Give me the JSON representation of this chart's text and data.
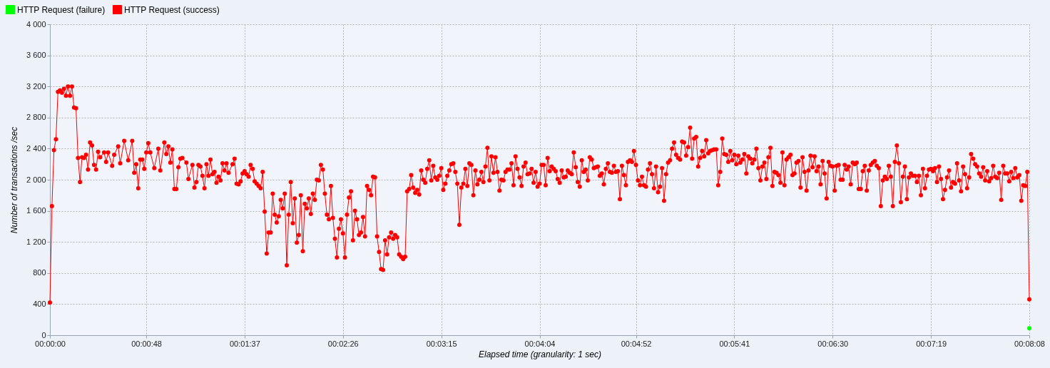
{
  "chart_data": {
    "type": "line",
    "xlabel": "Elapsed time (granularity: 1 sec)",
    "ylabel": "Number of transactions /sec",
    "xlim": [
      0,
      488
    ],
    "xticks": [
      {
        "value": 0,
        "label": "00:00:00"
      },
      {
        "value": 48,
        "label": "00:00:48"
      },
      {
        "value": 97,
        "label": "00:01:37"
      },
      {
        "value": 146,
        "label": "00:02:26"
      },
      {
        "value": 195,
        "label": "00:03:15"
      },
      {
        "value": 244,
        "label": "00:04:04"
      },
      {
        "value": 292,
        "label": "00:04:52"
      },
      {
        "value": 341,
        "label": "00:05:41"
      },
      {
        "value": 390,
        "label": "00:06:30"
      },
      {
        "value": 439,
        "label": "00:07:19"
      },
      {
        "value": 488,
        "label": "00:08:08"
      }
    ],
    "ylim": [
      0,
      4000
    ],
    "yticks": [
      0,
      400,
      800,
      {
        "value": 1200,
        "label": "1 200"
      },
      {
        "value": 1600,
        "label": "1 600"
      },
      {
        "value": 2000,
        "label": "2 000"
      },
      {
        "value": 2400,
        "label": "2 400"
      },
      {
        "value": 2800,
        "label": "2 800"
      },
      {
        "value": 3200,
        "label": "3 200"
      },
      {
        "value": 3600,
        "label": "3 600"
      },
      {
        "value": 4000,
        "label": "4 000"
      }
    ],
    "grid": true,
    "legend": "top left",
    "marker": "circle",
    "line_style": "solid",
    "series": [
      {
        "name": "HTTP Request (failure)",
        "color": "#00ff00",
        "x": [
          488
        ],
        "values": [
          90
        ]
      },
      {
        "name": "HTTP Request (success)",
        "color": "#ff0000",
        "x": [
          0,
          1,
          2,
          3,
          4,
          5,
          6,
          7,
          8,
          9,
          10,
          11,
          12,
          13,
          14,
          15,
          16,
          17,
          18,
          19,
          20,
          21,
          22,
          23,
          24,
          25,
          27,
          28,
          29,
          31,
          32,
          34,
          35,
          37,
          39,
          41,
          42,
          43,
          44,
          45,
          46,
          47,
          48,
          49,
          50,
          52,
          54,
          55,
          57,
          58,
          59,
          60,
          61,
          62,
          63,
          64,
          65,
          66,
          68,
          69,
          71,
          72,
          73,
          74,
          75,
          76,
          77,
          78,
          79,
          80,
          81,
          82,
          83,
          84,
          85,
          86,
          87,
          88,
          89,
          91,
          92,
          93,
          94,
          95,
          96,
          97,
          98,
          99,
          100,
          101,
          102,
          103,
          104,
          105,
          106,
          107,
          108,
          109,
          110,
          111,
          112,
          113,
          114,
          115,
          116,
          117,
          118,
          119,
          120,
          121,
          122,
          123,
          124,
          125,
          126,
          127,
          128,
          129,
          130,
          131,
          132,
          133,
          134,
          135,
          136,
          137,
          138,
          139,
          140,
          141,
          142,
          143,
          144,
          145,
          146,
          147,
          148,
          149,
          150,
          151,
          152,
          153,
          154,
          155,
          156,
          157,
          158,
          159,
          160,
          161,
          162,
          163,
          164,
          165,
          166,
          167,
          168,
          169,
          170,
          171,
          172,
          173,
          174,
          175,
          176,
          177,
          178,
          179,
          180,
          181,
          182,
          183,
          184,
          185,
          186,
          187,
          188,
          189,
          190,
          191,
          192,
          193,
          194,
          195,
          196,
          197,
          198,
          199,
          200,
          201,
          202,
          203,
          204,
          205,
          206,
          207,
          208,
          209,
          210,
          211,
          212,
          213,
          214,
          215,
          216,
          217,
          218,
          219,
          220,
          221,
          222,
          223,
          224,
          225,
          226,
          227,
          228,
          229,
          230,
          231,
          232,
          233,
          234,
          235,
          236,
          237,
          238,
          239,
          240,
          241,
          242,
          243,
          244,
          245,
          246,
          247,
          248,
          249,
          250,
          251,
          252,
          253,
          254,
          255,
          256,
          257,
          258,
          259,
          260,
          261,
          262,
          263,
          264,
          265,
          266,
          267,
          268,
          269,
          270,
          271,
          272,
          273,
          274,
          275,
          276,
          277,
          278,
          279,
          280,
          281,
          282,
          283,
          284,
          285,
          286,
          287,
          288,
          289,
          290,
          291,
          292,
          293,
          294,
          295,
          296,
          297,
          298,
          299,
          300,
          301,
          302,
          303,
          304,
          305,
          306,
          307,
          308,
          309,
          310,
          311,
          312,
          313,
          314,
          315,
          316,
          317,
          318,
          319,
          320,
          321,
          322,
          323,
          324,
          325,
          326,
          327,
          328,
          329,
          330,
          331,
          332,
          333,
          334,
          335,
          336,
          337,
          338,
          339,
          340,
          341,
          342,
          343,
          344,
          345,
          346,
          347,
          348,
          349,
          350,
          351,
          352,
          353,
          354,
          355,
          356,
          357,
          358,
          359,
          360,
          361,
          362,
          363,
          364,
          365,
          366,
          367,
          368,
          369,
          370,
          371,
          372,
          373,
          374,
          375,
          376,
          377,
          378,
          379,
          380,
          381,
          382,
          383,
          384,
          385,
          386,
          387,
          388,
          389,
          390,
          391,
          392,
          393,
          394,
          395,
          396,
          397,
          398,
          399,
          400,
          401,
          402,
          403,
          404,
          405,
          406,
          407,
          408,
          409,
          410,
          411,
          412,
          413,
          414,
          415,
          416,
          417,
          418,
          419,
          420,
          421,
          422,
          423,
          424,
          425,
          426,
          427,
          428,
          429,
          430,
          431,
          432,
          433,
          434,
          435,
          436,
          437,
          438,
          439,
          440,
          441,
          442,
          443,
          444,
          445,
          446,
          447,
          448,
          449,
          450,
          451,
          452,
          453,
          454,
          455,
          456,
          457,
          458,
          459,
          460,
          461,
          462,
          463,
          464,
          465,
          466,
          467,
          468,
          469,
          470,
          471,
          472,
          473,
          474,
          475,
          476,
          477,
          478,
          479,
          480,
          481,
          482,
          483,
          484,
          485,
          486,
          487,
          488
        ],
        "values": [
          420,
          1660,
          2380,
          2520,
          3130,
          3150,
          3120,
          3170,
          3080,
          3200,
          3080,
          3200,
          2930,
          2920,
          2280,
          1970,
          2290,
          2280,
          2320,
          2130,
          2480,
          2440,
          2190,
          2130,
          2360,
          2290,
          2350,
          2230,
          2350,
          2180,
          2320,
          2430,
          2210,
          2500,
          2250,
          2500,
          2090,
          2200,
          1890,
          2260,
          2260,
          2140,
          2350,
          2470,
          2350,
          2150,
          2400,
          2120,
          2480,
          2330,
          2430,
          2220,
          2390,
          1880,
          1880,
          2160,
          2270,
          2280,
          2220,
          2010,
          2190,
          1900,
          1970,
          2190,
          2170,
          2050,
          1890,
          2200,
          2050,
          2260,
          2070,
          2100,
          1960,
          2040,
          1990,
          2210,
          2120,
          2210,
          2090,
          2200,
          2270,
          1950,
          1940,
          1980,
          2080,
          2110,
          2070,
          2040,
          2190,
          2140,
          1980,
          1950,
          1920,
          1890,
          2100,
          1590,
          1050,
          1320,
          1320,
          1820,
          1550,
          1450,
          1530,
          1740,
          1630,
          1820,
          900,
          1550,
          1970,
          1440,
          1760,
          1190,
          1290,
          1800,
          1080,
          1690,
          1630,
          1760,
          1560,
          1820,
          1740,
          2000,
          1990,
          2190,
          2130,
          1820,
          1550,
          1490,
          1920,
          1510,
          1240,
          1000,
          1370,
          1490,
          1310,
          1000,
          1550,
          1770,
          1850,
          1220,
          1600,
          1490,
          1290,
          1320,
          1520,
          1270,
          1920,
          1870,
          1800,
          2040,
          2030,
          1270,
          1070,
          850,
          840,
          1220,
          1040,
          1260,
          1320,
          1240,
          1290,
          1260,
          1040,
          1010,
          980,
          1010,
          1850,
          1880,
          2060,
          1900,
          1830,
          1870,
          1810,
          2120,
          2000,
          1960,
          2140,
          2250,
          1990,
          2180,
          2030,
          2000,
          2050,
          2150,
          1870,
          1950,
          2050,
          2120,
          2200,
          2210,
          2100,
          1950,
          1420,
          1900,
          1950,
          2140,
          1920,
          2210,
          2190,
          1800,
          2120,
          1940,
          2000,
          2100,
          1970,
          2170,
          2410,
          1990,
          2300,
          2090,
          2290,
          2100,
          1860,
          2000,
          1990,
          2100,
          2130,
          2130,
          2210,
          1930,
          2300,
          2140,
          2030,
          1920,
          2170,
          2220,
          2070,
          2080,
          2140,
          1960,
          2100,
          1910,
          1950,
          2190,
          2190,
          1930,
          2280,
          2110,
          2170,
          2140,
          2110,
          2010,
          1960,
          2120,
          2030,
          2040,
          2120,
          2090,
          2070,
          2350,
          2160,
          1970,
          1910,
          2250,
          2100,
          2130,
          1990,
          2290,
          2260,
          2150,
          2160,
          2170,
          2050,
          2080,
          1940,
          2140,
          2210,
          2100,
          2090,
          2180,
          2100,
          2110,
          1750,
          2180,
          2060,
          1930,
          2230,
          2250,
          2230,
          2370,
          2190,
          1990,
          1930,
          2040,
          1930,
          1910,
          2130,
          2210,
          2070,
          1890,
          2170,
          1840,
          1910,
          2150,
          1730,
          2070,
          2220,
          2250,
          2400,
          2480,
          2320,
          2280,
          2260,
          2490,
          2480,
          2310,
          2420,
          2670,
          2270,
          2530,
          2550,
          2170,
          2280,
          2370,
          2300,
          2510,
          2340,
          2370,
          2380,
          2390,
          2390,
          1930,
          2100,
          2530,
          2330,
          2320,
          2230,
          2370,
          2250,
          2320,
          2200,
          2310,
          2220,
          2260,
          2330,
          2080,
          2300,
          2270,
          2210,
          2260,
          2400,
          2150,
          1990,
          2170,
          2220,
          2010,
          2290,
          2410,
          1920,
          2100,
          2090,
          2060,
          1960,
          2350,
          1930,
          2260,
          2290,
          2320,
          2060,
          2080,
          2220,
          2240,
          1900,
          2290,
          2100,
          1860,
          2120,
          2310,
          2160,
          2300,
          2110,
          2170,
          1940,
          2240,
          2080,
          1760,
          2230,
          2180,
          2170,
          1860,
          2180,
          2190,
          2000,
          2000,
          2190,
          2130,
          2170,
          1940,
          2220,
          2200,
          2220,
          1880,
          1880,
          2110,
          2180,
          1860,
          2120,
          2190,
          2220,
          2240,
          2180,
          2150,
          1660,
          1990,
          2040,
          2010,
          2180,
          2040,
          1660,
          2230,
          2440,
          2210,
          1710,
          2040,
          2170,
          1750,
          2030,
          2080,
          2050,
          2050,
          1970,
          2050,
          1800,
          2140,
          1890,
          2050,
          2130,
          2140,
          2110,
          2150,
          1970,
          2170,
          2010,
          1750,
          1870,
          2030,
          2120,
          1900,
          1970,
          1950,
          2210,
          1990,
          1850,
          2170,
          2070,
          1890,
          2030,
          2330,
          2270,
          2200,
          2170,
          2080,
          2040,
          2160,
          1990,
          2110,
          1980,
          2020,
          2180,
          2040,
          2020,
          2090,
          1740,
          2180,
          2080,
          2080,
          1980,
          2100,
          2020,
          2150,
          2030,
          2060,
          1730,
          1930,
          1920,
          2100,
          460
        ]
      }
    ]
  }
}
